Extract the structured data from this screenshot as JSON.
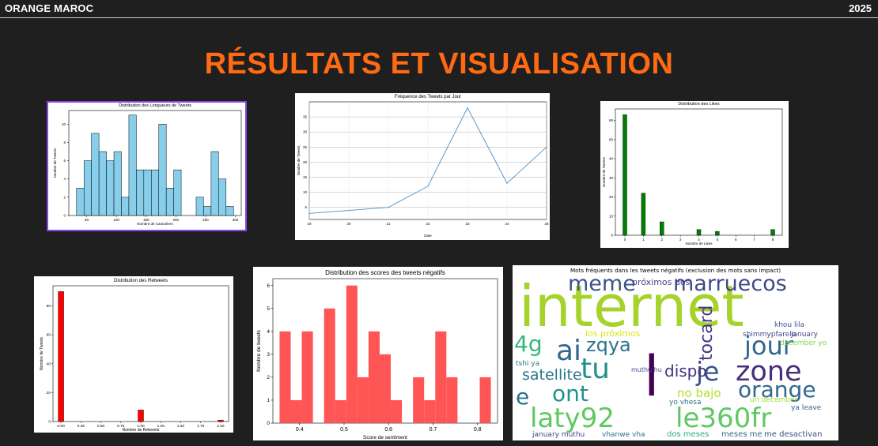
{
  "header": {
    "brand": "ORANGE MAROC",
    "year": "2025"
  },
  "page_title": "RÉSULTATS ET VISUALISATION",
  "colors": {
    "accent": "#ff6a13",
    "background": "#1f1f1f",
    "bar_blue": "#87ceeb",
    "bar_green": "#008000",
    "bar_red": "#ff0000",
    "bar_lightred": "#ff4c4c",
    "line_blue": "#4c8fc8",
    "selected_border": "#8b45e8"
  },
  "chart_data": [
    {
      "id": "lengths",
      "type": "bar",
      "title": "Distribution des Longueurs de Tweets",
      "xlabel": "Nombre de Caractères",
      "ylabel": "Nombre de Tweets",
      "xlim": [
        20,
        310
      ],
      "ylim": [
        0,
        11.5
      ],
      "xticks": [
        50,
        100,
        150,
        200,
        250,
        300
      ],
      "yticks": [
        0,
        2,
        4,
        6,
        8,
        10
      ],
      "bins": [
        [
          32,
          40,
          3
        ],
        [
          40,
          48,
          6
        ],
        [
          48,
          56,
          9
        ],
        [
          56,
          64,
          7
        ],
        [
          64,
          72,
          6
        ],
        [
          72,
          80,
          7
        ],
        [
          80,
          88,
          2
        ],
        [
          88,
          96,
          11
        ],
        [
          96,
          104,
          5
        ],
        [
          104,
          112,
          5
        ],
        [
          112,
          120,
          5
        ],
        [
          120,
          128,
          10
        ],
        [
          128,
          136,
          3
        ],
        [
          136,
          144,
          5
        ],
        [
          144,
          152,
          0
        ],
        [
          152,
          160,
          0
        ],
        [
          160,
          168,
          2
        ],
        [
          168,
          176,
          1
        ],
        [
          176,
          184,
          7
        ],
        [
          184,
          192,
          4
        ],
        [
          192,
          200,
          1
        ]
      ],
      "bin_note": "bins given as [start,end,count] on an internal scale; see xvals",
      "xvals": [],
      "grid": false
    },
    {
      "id": "frequency",
      "type": "line",
      "title": "Fréquence des Tweets par Jour",
      "xlabel": "Date",
      "ylabel": "Nombre de Tweets",
      "x": [
        19,
        20,
        21,
        22,
        23,
        24,
        25
      ],
      "y": [
        3,
        4,
        5,
        12,
        38,
        13,
        25
      ],
      "xticks": [
        "19",
        "20",
        "21",
        "22",
        "23",
        "24",
        "25"
      ],
      "yticks": [
        5,
        10,
        15,
        20,
        25,
        30,
        35
      ],
      "xlim": [
        19,
        25
      ],
      "ylim": [
        1,
        40
      ],
      "grid": true
    },
    {
      "id": "likes",
      "type": "bar",
      "title": "Distribution des Likes",
      "xlabel": "Nombre de Likes",
      "ylabel": "Nombre de Tweets",
      "categories": [
        0,
        1,
        2,
        3,
        4,
        5,
        6,
        7,
        8
      ],
      "values": [
        63,
        22,
        7,
        0,
        3,
        2,
        0,
        0,
        3
      ],
      "xticks": [
        0,
        1,
        2,
        3,
        4,
        5,
        6,
        7,
        8
      ],
      "yticks": [
        0,
        10,
        20,
        30,
        40,
        50,
        60
      ],
      "ylim": [
        0,
        66
      ],
      "grid": false
    },
    {
      "id": "retweets",
      "type": "bar",
      "title": "Distribution des Retweets",
      "xlabel": "Nombre de Retweets",
      "ylabel": "Nombre de Tweets",
      "categories": [
        0,
        1,
        2
      ],
      "values": [
        90,
        8,
        1
      ],
      "xticks": [
        "0.00",
        "0.25",
        "0.50",
        "0.75",
        "1.00",
        "1.25",
        "1.50",
        "1.75",
        "2.00"
      ],
      "yticks": [
        0,
        20,
        40,
        60,
        80
      ],
      "xlim": [
        -0.1,
        2.1
      ],
      "ylim": [
        0,
        94
      ],
      "grid": false
    },
    {
      "id": "sentiment",
      "type": "bar",
      "title": "Distribution des scores des tweets négatifs",
      "xlabel": "Score de sentiment",
      "ylabel": "Nombre de tweets",
      "xticks": [
        "0.4",
        "0.5",
        "0.6",
        "0.7",
        "0.8"
      ],
      "yticks": [
        0,
        1,
        2,
        3,
        4,
        5,
        6
      ],
      "xlim": [
        0.34,
        0.845
      ],
      "ylim": [
        0,
        6.3
      ],
      "bins": [
        [
          0.355,
          0.38,
          4
        ],
        [
          0.38,
          0.405,
          1
        ],
        [
          0.405,
          0.43,
          4
        ],
        [
          0.43,
          0.455,
          0
        ],
        [
          0.455,
          0.48,
          5
        ],
        [
          0.48,
          0.505,
          1
        ],
        [
          0.505,
          0.53,
          6
        ],
        [
          0.53,
          0.555,
          2
        ],
        [
          0.555,
          0.58,
          4
        ],
        [
          0.58,
          0.605,
          3
        ],
        [
          0.605,
          0.63,
          1
        ],
        [
          0.63,
          0.655,
          0
        ],
        [
          0.655,
          0.68,
          2
        ],
        [
          0.68,
          0.705,
          1
        ],
        [
          0.705,
          0.73,
          4
        ],
        [
          0.73,
          0.755,
          2
        ],
        [
          0.755,
          0.78,
          0
        ],
        [
          0.78,
          0.805,
          0
        ],
        [
          0.805,
          0.83,
          2
        ]
      ],
      "grid": false
    }
  ],
  "wordcloud": {
    "title": "Mots fréquents dans les tweets négatifs (exclusion des mots sans impact)",
    "words": [
      {
        "t": "internet",
        "c": "#a6d32b"
      },
      {
        "t": "meme",
        "c": "#3b528b"
      },
      {
        "t": "marruecos",
        "c": "#3e4a89"
      },
      {
        "t": "próximos dos",
        "c": "#414487"
      },
      {
        "t": "ai",
        "c": "#31688e"
      },
      {
        "t": "zqya",
        "c": "#2c728e"
      },
      {
        "t": "jour",
        "c": "#31688e"
      },
      {
        "t": "4g",
        "c": "#35b779"
      },
      {
        "t": "tocard",
        "c": "#443983"
      },
      {
        "t": "l",
        "c": "#440154"
      },
      {
        "t": "tu",
        "c": "#21918c"
      },
      {
        "t": "zone",
        "c": "#472d7b"
      },
      {
        "t": "je",
        "c": "#3b528b"
      },
      {
        "t": "satellite",
        "c": "#2a788e"
      },
      {
        "t": "dispo",
        "c": "#46337e"
      },
      {
        "t": "orange",
        "c": "#31688e"
      },
      {
        "t": "e",
        "c": "#2d708e"
      },
      {
        "t": "ont",
        "c": "#21918c"
      },
      {
        "t": "no bajo",
        "c": "#b5de2b"
      },
      {
        "t": "laty92",
        "c": "#5ec962"
      },
      {
        "t": "le360fr",
        "c": "#5ec962"
      },
      {
        "t": "los próximos",
        "c": "#dde318"
      },
      {
        "t": "shimmypfarelo",
        "c": "#3e4a89"
      },
      {
        "t": "january",
        "c": "#433e85"
      },
      {
        "t": "december yo",
        "c": "#84d44b"
      },
      {
        "t": "khou lila",
        "c": "#3b528b"
      },
      {
        "t": "tshi ya",
        "c": "#2a788e"
      },
      {
        "t": "muthu hu",
        "c": "#3e4a89"
      },
      {
        "t": "yo vhesa",
        "c": "#2c728e"
      },
      {
        "t": "ya leave",
        "c": "#31688e"
      },
      {
        "t": "dos meses",
        "c": "#29af7f"
      },
      {
        "t": "meses me",
        "c": "#31688e"
      },
      {
        "t": "me desactivan",
        "c": "#3b528b"
      },
      {
        "t": "january muthu",
        "c": "#3e4a89"
      },
      {
        "t": "vhanwe vha",
        "c": "#2c728e"
      },
      {
        "t": "uri december",
        "c": "#a0da39"
      }
    ]
  }
}
